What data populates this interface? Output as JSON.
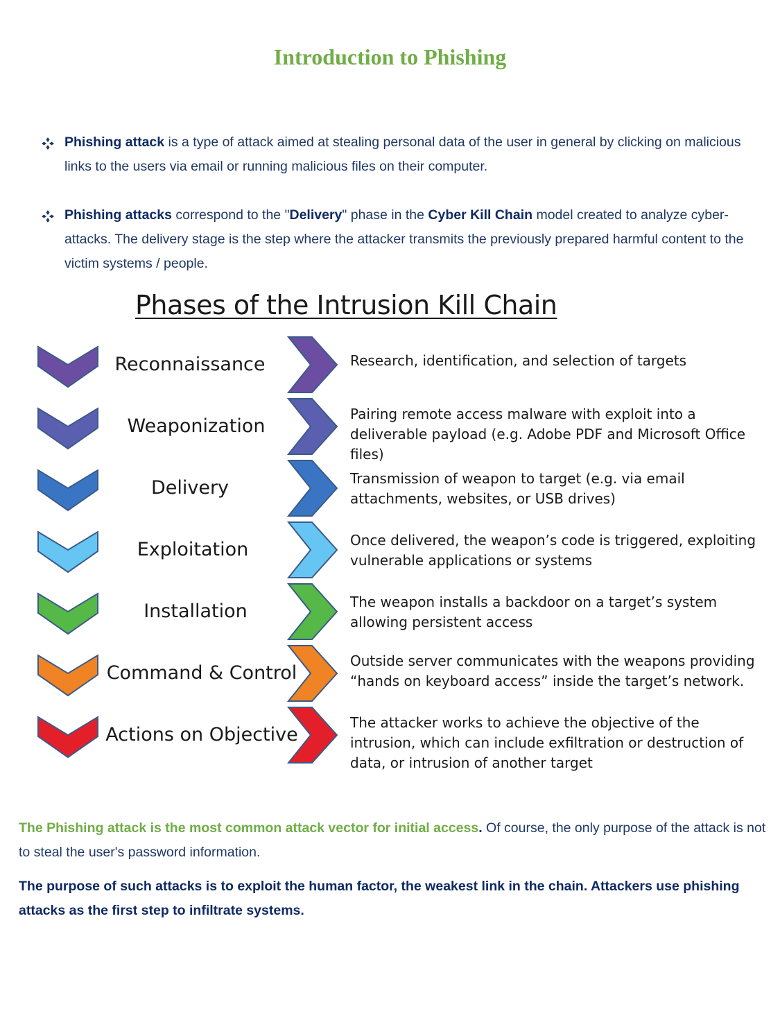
{
  "title": "Introduction to Phishing",
  "bullets": [
    {
      "bold_lead": "Phishing attack",
      "text": " is a type of attack aimed at stealing personal data of the user in general by clicking on malicious links to the users via email or running malicious files on their computer."
    },
    {
      "bold_lead": "Phishing attacks",
      "text_a": " correspond to the \"",
      "bold_mid": "Delivery",
      "text_b": "\" phase in the ",
      "bold_model": "Cyber Kill Chain",
      "text_c": " model created to analyze cyber-attacks. The delivery stage is the step where the attacker transmits the previously prepared harmful content to the victim systems / people."
    }
  ],
  "diagram": {
    "title": "Phases of the Intrusion Kill Chain",
    "phases": [
      {
        "name": "Reconnaissance",
        "color": "#6b4ea2",
        "description": "Research, identification, and selection of targets"
      },
      {
        "name": "Weaponization",
        "color": "#5a5fb0",
        "description": "Pairing remote access malware with exploit into a deliverable payload (e.g. Adobe PDF and Microsoft Office files)"
      },
      {
        "name": "Delivery",
        "color": "#3a75c4",
        "description": "Transmission of weapon to target (e.g. via email attachments, websites, or USB drives)"
      },
      {
        "name": "Exploitation",
        "color": "#66c5f2",
        "description": "Once delivered, the weapon’s code is triggered, exploiting vulnerable applications or systems"
      },
      {
        "name": "Installation",
        "color": "#56b847",
        "description": "The weapon installs a backdoor on a target’s system allowing persistent access"
      },
      {
        "name": "Command & Control",
        "color": "#f08424",
        "description": "Outside server communicates with the weapons providing “hands on keyboard access” inside the target’s network."
      },
      {
        "name": "Actions on Objective",
        "color": "#e3202a",
        "description": "The attacker works to achieve the objective of the intrusion, which can include exfiltration or destruction of data, or intrusion of another target"
      }
    ]
  },
  "closing": {
    "green_lead": "The Phishing attack is the most common attack vector for initial access",
    "lead_period": ".",
    "rest": " Of course, the only purpose of the attack is not to steal the user's password information.",
    "bold_paragraph": "The purpose of such attacks is to exploit the human factor, the weakest link in the chain. Attackers use phishing attacks as the first step to infiltrate systems."
  }
}
